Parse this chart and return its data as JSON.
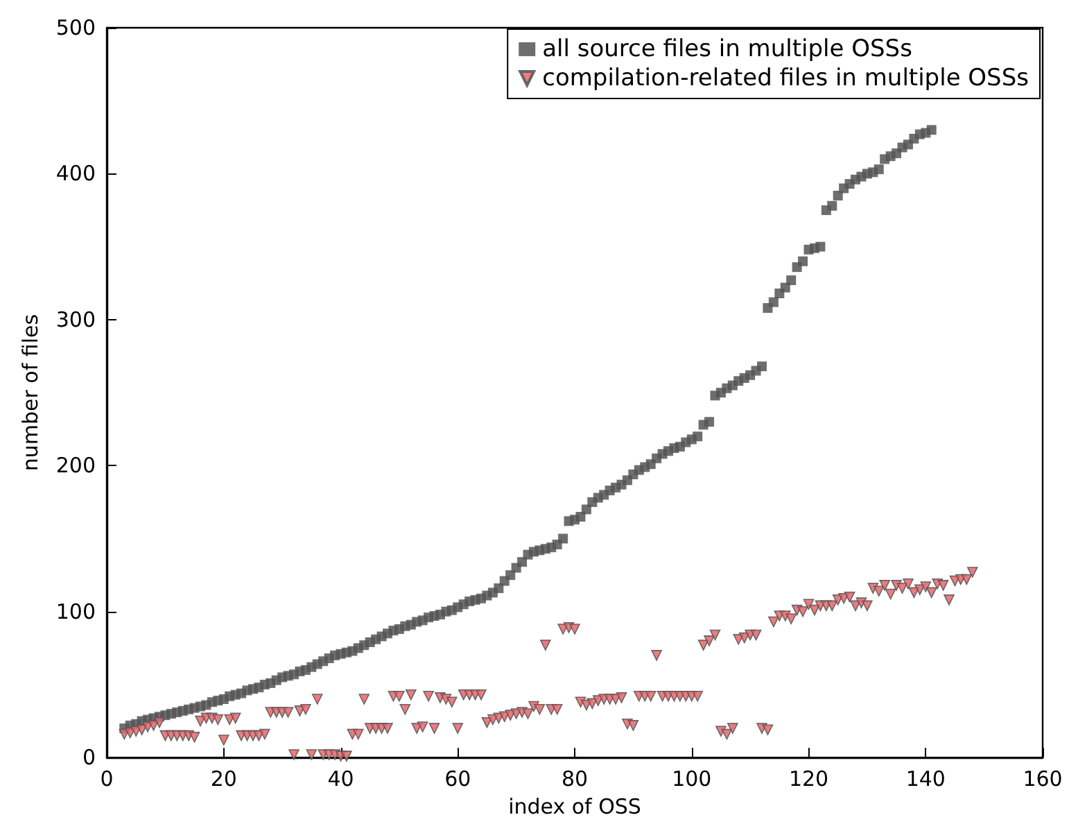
{
  "chart_data": {
    "type": "scatter",
    "xlabel": "index of OSS",
    "ylabel": "number of files",
    "xlim": [
      0,
      160
    ],
    "xticks": [
      0,
      20,
      40,
      60,
      80,
      100,
      120,
      140,
      160
    ],
    "ylim": [
      0,
      500
    ],
    "yticks": [
      0,
      100,
      200,
      300,
      400,
      500
    ],
    "grid": false,
    "legend": "top right",
    "series": [
      {
        "name": "all source files in multiple OSSs",
        "color": "#555555",
        "marker": "square",
        "x": [
          3,
          4,
          5,
          6,
          7,
          8,
          9,
          10,
          11,
          12,
          13,
          14,
          15,
          16,
          17,
          18,
          19,
          20,
          21,
          22,
          23,
          24,
          25,
          26,
          27,
          28,
          29,
          30,
          31,
          32,
          33,
          34,
          35,
          36,
          37,
          38,
          39,
          40,
          41,
          42,
          43,
          44,
          45,
          46,
          47,
          48,
          49,
          50,
          51,
          52,
          53,
          54,
          55,
          56,
          57,
          58,
          59,
          60,
          61,
          62,
          63,
          64,
          65,
          66,
          67,
          68,
          69,
          70,
          71,
          72,
          73,
          74,
          75,
          76,
          77,
          78,
          79,
          80,
          81,
          82,
          83,
          84,
          85,
          86,
          87,
          88,
          89,
          90,
          91,
          92,
          93,
          94,
          95,
          96,
          97,
          98,
          99,
          100,
          101,
          102,
          103,
          104,
          105,
          106,
          107,
          108,
          109,
          110,
          111,
          112,
          113,
          114,
          115,
          116,
          117,
          118,
          119,
          120,
          121,
          122,
          123,
          124,
          125,
          126,
          127,
          128,
          129,
          130,
          131,
          132,
          133,
          134,
          135,
          136,
          137,
          138,
          139,
          140,
          141
        ],
        "values": [
          20,
          22,
          23,
          25,
          26,
          27,
          28,
          29,
          30,
          31,
          32,
          33,
          34,
          35,
          36,
          38,
          39,
          40,
          42,
          43,
          44,
          46,
          47,
          48,
          50,
          51,
          53,
          55,
          56,
          57,
          59,
          60,
          62,
          64,
          66,
          68,
          70,
          71,
          72,
          73,
          75,
          77,
          79,
          81,
          83,
          85,
          87,
          88,
          90,
          91,
          93,
          94,
          96,
          97,
          98,
          100,
          101,
          103,
          105,
          107,
          108,
          109,
          111,
          113,
          116,
          121,
          125,
          130,
          134,
          139,
          141,
          142,
          143,
          144,
          146,
          150,
          162,
          163,
          165,
          170,
          175,
          178,
          180,
          183,
          185,
          187,
          190,
          194,
          197,
          199,
          201,
          205,
          208,
          210,
          212,
          213,
          216,
          218,
          220,
          228,
          230,
          248,
          250,
          253,
          255,
          258,
          260,
          262,
          265,
          268,
          308,
          312,
          318,
          322,
          327,
          336,
          340,
          348,
          349,
          350,
          375,
          378,
          385,
          390,
          393,
          396,
          398,
          400,
          401,
          403,
          410,
          412,
          414,
          418,
          420,
          424,
          427,
          428,
          430
        ]
      },
      {
        "name": "compilation-related files in multiple OSSs",
        "color": "#e8656a",
        "marker": "triangle",
        "x": [
          3,
          4,
          5,
          6,
          7,
          8,
          9,
          10,
          11,
          12,
          13,
          14,
          15,
          16,
          17,
          18,
          19,
          20,
          21,
          22,
          23,
          24,
          25,
          26,
          27,
          28,
          29,
          30,
          31,
          32,
          33,
          34,
          35,
          36,
          37,
          38,
          39,
          40,
          41,
          42,
          43,
          44,
          45,
          46,
          47,
          48,
          49,
          50,
          51,
          52,
          53,
          54,
          55,
          56,
          57,
          58,
          59,
          60,
          61,
          62,
          63,
          64,
          65,
          66,
          67,
          68,
          69,
          70,
          71,
          72,
          73,
          74,
          75,
          76,
          77,
          78,
          79,
          80,
          81,
          82,
          83,
          84,
          85,
          86,
          87,
          88,
          89,
          90,
          91,
          92,
          93,
          94,
          95,
          96,
          97,
          98,
          99,
          100,
          101,
          102,
          103,
          104,
          105,
          106,
          107,
          108,
          109,
          110,
          111,
          112,
          113,
          114,
          115,
          116,
          117,
          118,
          119,
          120,
          121,
          122,
          123,
          124,
          125,
          126,
          127,
          128,
          129,
          130,
          131,
          132,
          133,
          134,
          135,
          136,
          137,
          138,
          139,
          140,
          141,
          142,
          143,
          144,
          145,
          146,
          147,
          148
        ],
        "values": [
          16,
          17,
          18,
          19,
          21,
          22,
          24,
          15,
          15,
          15,
          15,
          15,
          14,
          25,
          27,
          27,
          26,
          12,
          26,
          27,
          15,
          15,
          15,
          15,
          16,
          31,
          31,
          31,
          31,
          2,
          32,
          33,
          2,
          40,
          2,
          2,
          2,
          1,
          1,
          16,
          16,
          40,
          20,
          20,
          20,
          20,
          42,
          42,
          33,
          43,
          20,
          21,
          42,
          20,
          41,
          40,
          38,
          20,
          43,
          43,
          43,
          43,
          24,
          26,
          27,
          28,
          29,
          30,
          31,
          30,
          35,
          33,
          77,
          33,
          33,
          88,
          89,
          88,
          38,
          36,
          37,
          39,
          40,
          40,
          40,
          41,
          23,
          22,
          42,
          42,
          42,
          70,
          42,
          42,
          42,
          42,
          42,
          42,
          42,
          77,
          80,
          84,
          18,
          16,
          20,
          81,
          82,
          84,
          84,
          20,
          19,
          93,
          97,
          97,
          95,
          101,
          100,
          105,
          101,
          104,
          104,
          104,
          108,
          109,
          110,
          104,
          106,
          104,
          116,
          114,
          118,
          112,
          118,
          116,
          119,
          113,
          115,
          117,
          113,
          119,
          118,
          108,
          121,
          122,
          122,
          127
        ]
      }
    ]
  }
}
